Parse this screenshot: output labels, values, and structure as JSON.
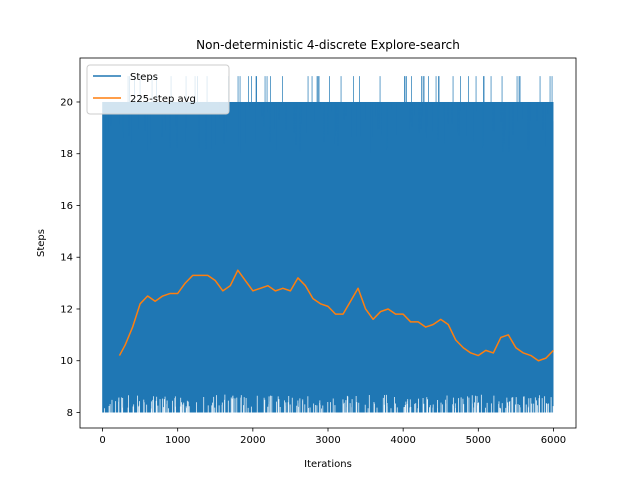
{
  "chart_data": {
    "type": "line",
    "title": "Non-deterministic 4-discrete Explore-search",
    "xlabel": "Iterations",
    "ylabel": "Steps",
    "xlim": [
      -300,
      6300
    ],
    "ylim": [
      7.4,
      21.7
    ],
    "xticks": [
      0,
      1000,
      2000,
      3000,
      4000,
      5000,
      6000
    ],
    "yticks": [
      8,
      10,
      12,
      14,
      16,
      18,
      20
    ],
    "grid": false,
    "legend_position": "upper left",
    "series": [
      {
        "name": "Steps",
        "color": "#1f77b4",
        "x_range": [
          0,
          6000
        ],
        "values_min": 8,
        "values_max": 21
      },
      {
        "name": "225-step avg",
        "color": "#ff7f0e",
        "x": [
          225,
          300,
          400,
          500,
          600,
          700,
          800,
          900,
          1000,
          1100,
          1200,
          1300,
          1400,
          1500,
          1600,
          1700,
          1800,
          1900,
          2000,
          2100,
          2200,
          2300,
          2400,
          2500,
          2600,
          2700,
          2800,
          2900,
          3000,
          3100,
          3200,
          3300,
          3400,
          3500,
          3600,
          3700,
          3800,
          3900,
          4000,
          4100,
          4200,
          4300,
          4400,
          4500,
          4600,
          4700,
          4800,
          4900,
          5000,
          5100,
          5200,
          5300,
          5400,
          5500,
          5600,
          5700,
          5800,
          5900,
          6000
        ],
        "values": [
          10.2,
          10.6,
          11.3,
          12.2,
          12.5,
          12.3,
          12.5,
          12.6,
          12.6,
          13.0,
          13.3,
          13.3,
          13.3,
          13.1,
          12.7,
          12.9,
          13.5,
          13.1,
          12.7,
          12.8,
          12.9,
          12.7,
          12.8,
          12.7,
          13.2,
          12.9,
          12.4,
          12.2,
          12.1,
          11.8,
          11.8,
          12.3,
          12.8,
          12.0,
          11.6,
          11.9,
          12.0,
          11.8,
          11.8,
          11.5,
          11.5,
          11.3,
          11.4,
          11.6,
          11.4,
          10.8,
          10.5,
          10.3,
          10.2,
          10.4,
          10.3,
          10.9,
          11.0,
          10.5,
          10.3,
          10.2,
          10.0,
          10.1,
          10.4
        ]
      }
    ]
  }
}
